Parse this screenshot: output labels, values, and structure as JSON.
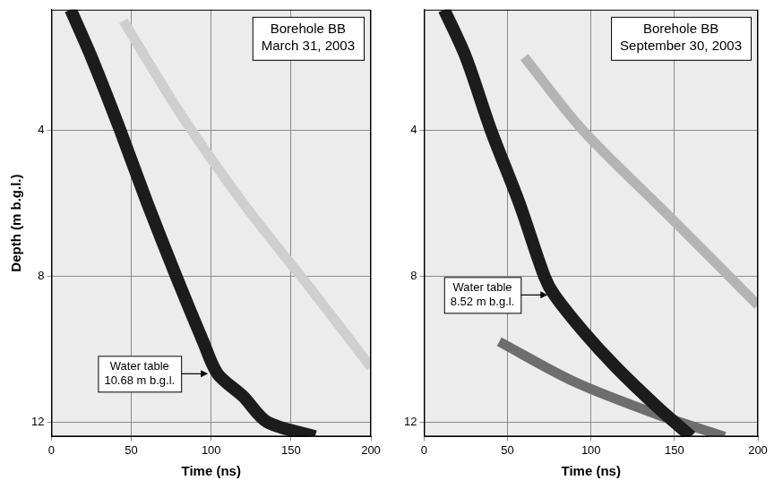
{
  "chart_data": [
    {
      "type": "line",
      "title": [
        "Borehole BB",
        "March 31, 2003"
      ],
      "x_label": "Time (ns)",
      "y_label": "Depth (m b.g.l.)",
      "xlim": [
        0,
        200
      ],
      "xticks": [
        0,
        50,
        100,
        150,
        200
      ],
      "ylim": [
        0.7,
        12.4
      ],
      "yticks": [
        4,
        8,
        12
      ],
      "grid": true,
      "series": [
        {
          "color": "#1c1c1c",
          "x": [
            12,
            25,
            43,
            60,
            78,
            95,
            104,
            120,
            135,
            165
          ],
          "values": [
            0.7,
            2,
            4,
            6,
            8,
            9.8,
            10.68,
            11.3,
            12,
            12.4
          ]
        },
        {
          "color": "#cfcfcf",
          "x": [
            45,
            80,
            120,
            165,
            200
          ],
          "values": [
            1.0,
            3.5,
            6,
            8.5,
            10.5
          ]
        }
      ],
      "annotations": [
        {
          "text": [
            "Water table",
            "10.68 m b.g.l."
          ],
          "x": 98,
          "y": 10.68
        }
      ]
    },
    {
      "type": "line",
      "title": [
        "Borehole BB",
        "September 30, 2003"
      ],
      "x_label": "Time (ns)",
      "xlim": [
        0,
        200
      ],
      "xticks": [
        0,
        50,
        100,
        150,
        200
      ],
      "ylim": [
        0.7,
        12.4
      ],
      "yticks": [
        4,
        8,
        12
      ],
      "grid": true,
      "series": [
        {
          "color": "#1c1c1c",
          "x": [
            12,
            25,
            40,
            57,
            72,
            78,
            95,
            115,
            140,
            160
          ],
          "values": [
            0.7,
            2,
            4,
            6,
            8,
            8.52,
            9.5,
            10.5,
            11.6,
            12.4
          ]
        },
        {
          "color": "#b4b4b4",
          "x": [
            60,
            95,
            150,
            200
          ],
          "values": [
            2,
            4,
            6.5,
            8.8
          ]
        },
        {
          "color": "#6e6e6e",
          "x": [
            45,
            90,
            140,
            180
          ],
          "values": [
            9.8,
            10.9,
            11.8,
            12.4
          ]
        }
      ],
      "annotations": [
        {
          "text": [
            "Water table",
            "8.52 m b.g.l."
          ],
          "x": 74,
          "y": 8.52
        }
      ]
    }
  ]
}
